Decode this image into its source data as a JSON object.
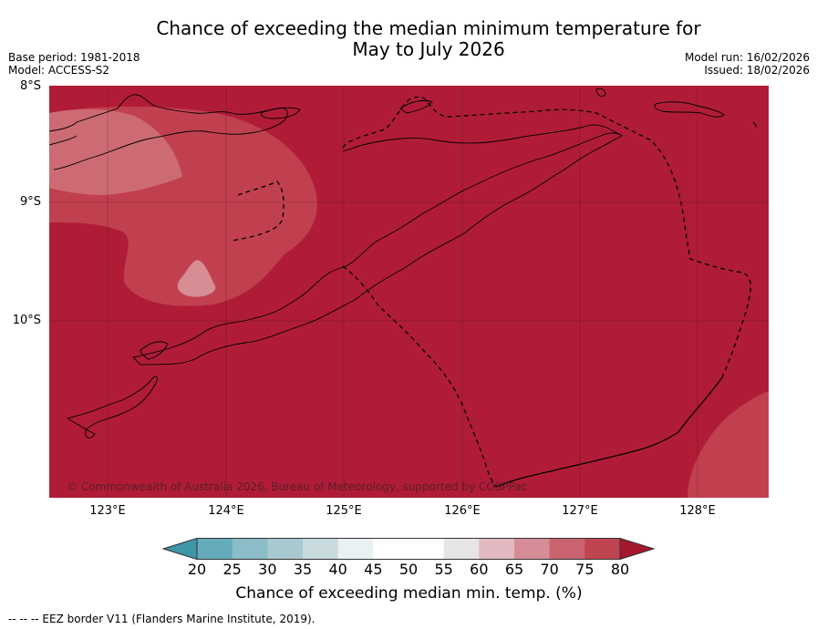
{
  "title_line1": "Chance of exceeding the median minimum temperature for",
  "title_line2": "May to July 2026",
  "base_period": "Base period: 1981-2018",
  "model": "Model: ACCESS-S2",
  "model_run": "Model run: 16/02/2026",
  "issued": "Issued: 18/02/2026",
  "lat_labels": [
    "8°S",
    "9°S",
    "10°S"
  ],
  "lon_labels": [
    "123°E",
    "124°E",
    "125°E",
    "126°E",
    "127°E",
    "128°E"
  ],
  "copyright": "© Commonwealth of Australia 2026, Bureau of Meteorology, supported by COSPPac",
  "colorbar": {
    "ticks": [
      "20",
      "25",
      "30",
      "35",
      "40",
      "45",
      "50",
      "55",
      "60",
      "65",
      "70",
      "75",
      "80"
    ],
    "colors": [
      "#3e96a6",
      "#64acbb",
      "#8bbcc7",
      "#a8c9cf",
      "#c9dadf",
      "#e9f1f3",
      "#ffffff",
      "#ffffff",
      "#e6e4e5",
      "#e2b8c1",
      "#d58c97",
      "#c96370",
      "#bf4452",
      "#a5172e"
    ],
    "label": "Chance of exceeding median min. temp. (%)"
  },
  "footer": "--  --  -- EEZ border V11 (Flanders Marine Institute, 2019).",
  "colors": {
    "high": "#b01c37",
    "mid": "#c0404f",
    "low": "#cd6b74",
    "lower": "#d68d93"
  }
}
